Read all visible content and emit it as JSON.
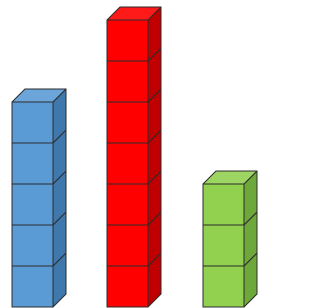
{
  "chart_data": {
    "type": "cube-stacks",
    "series": [
      {
        "color": "#5b9bd5",
        "side_color": "#3f78ad",
        "value": 5
      },
      {
        "color": "#ff0000",
        "side_color": "#c00000",
        "value": 7
      },
      {
        "color": "#92d050",
        "side_color": "#6ea83a",
        "value": 3
      }
    ]
  }
}
